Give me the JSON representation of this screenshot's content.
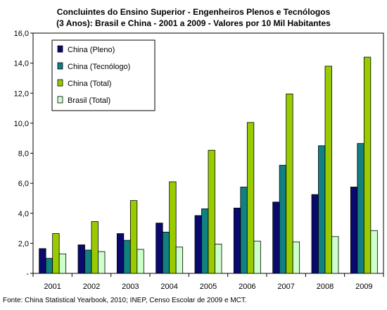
{
  "chart_data": {
    "type": "bar",
    "title_lines": [
      "Concluintes do Ensino Superior - Engenheiros Plenos e Tecnólogos",
      "(3 Anos): Brasil e China - 2001 a 2009 - Valores por 10 Mil Habitantes"
    ],
    "categories": [
      "2001",
      "2002",
      "2003",
      "2004",
      "2005",
      "2006",
      "2007",
      "2008",
      "2009"
    ],
    "series": [
      {
        "name": "China (Pleno)",
        "color": "#0a0a6e",
        "values": [
          1.65,
          1.9,
          2.65,
          3.35,
          3.85,
          4.35,
          4.75,
          5.25,
          5.75
        ]
      },
      {
        "name": "China (Tecnólogo)",
        "color": "#118080",
        "values": [
          1.0,
          1.55,
          2.2,
          2.75,
          4.3,
          5.75,
          7.2,
          8.5,
          8.65
        ]
      },
      {
        "name": "China (Total)",
        "color": "#99cc00",
        "values": [
          2.65,
          3.45,
          4.85,
          6.1,
          8.2,
          10.05,
          11.95,
          13.8,
          14.4
        ]
      },
      {
        "name": "Brasil (Total)",
        "color": "#ccffcc",
        "values": [
          1.3,
          1.45,
          1.6,
          1.75,
          1.95,
          2.15,
          2.1,
          2.45,
          2.85
        ]
      }
    ],
    "ylim": [
      0,
      16
    ],
    "yticks": [
      0,
      2,
      4,
      6,
      8,
      10,
      12,
      14,
      16
    ],
    "ytick_labels": [
      "-",
      "2,0",
      "4,0",
      "6,0",
      "8,0",
      "10,0",
      "12,0",
      "14,0",
      "16,0"
    ],
    "grid": false,
    "legend_position": "top-left"
  },
  "source": "Fonte: China Statistical Yearbook, 2010; INEP, Censo Escolar de 2009 e MCT."
}
